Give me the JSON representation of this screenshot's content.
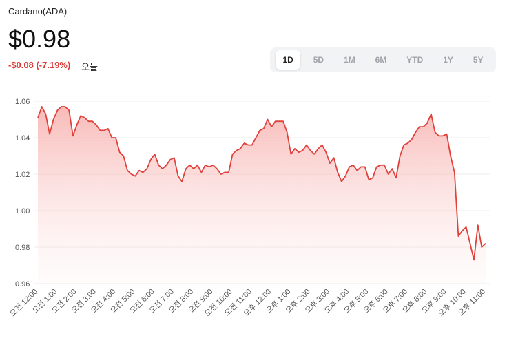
{
  "header": {
    "title": "Cardano(ADA)",
    "price": "$0.98",
    "change": "-$0.08 (-7.19%)",
    "period": "오늘",
    "tabs": [
      "1D",
      "5D",
      "1M",
      "6M",
      "YTD",
      "1Y",
      "5Y"
    ],
    "active_tab": 0
  },
  "chart_data": {
    "type": "line",
    "color": "#e0413b",
    "grid": true,
    "ylim": [
      0.96,
      1.065
    ],
    "yticks": [
      0.96,
      0.98,
      {
        "value": 1,
        "label": "1.00"
      },
      1.02,
      1.04,
      1.06
    ],
    "categories": [
      "오전 12:00",
      null,
      null,
      null,
      null,
      "오전 1:00",
      null,
      null,
      null,
      null,
      "오전 2:00",
      null,
      null,
      null,
      null,
      "오전 3:00",
      null,
      null,
      null,
      null,
      "오전 4:00",
      null,
      null,
      null,
      null,
      "오전 5:00",
      null,
      null,
      null,
      null,
      "오전 6:00",
      null,
      null,
      null,
      null,
      "오전 7:00",
      null,
      null,
      null,
      null,
      "오전 8:00",
      null,
      null,
      null,
      null,
      "오전 9:00",
      null,
      null,
      null,
      null,
      "오전 10:00",
      null,
      null,
      null,
      null,
      "오전 11:00",
      null,
      null,
      null,
      null,
      "오후 12:00",
      null,
      null,
      null,
      null,
      "오후 1:00",
      null,
      null,
      null,
      null,
      "오후 2:00",
      null,
      null,
      null,
      null,
      "오후 3:00",
      null,
      null,
      null,
      null,
      "오후 4:00",
      null,
      null,
      null,
      null,
      "오후 5:00",
      null,
      null,
      null,
      null,
      "오후 6:00",
      null,
      null,
      null,
      null,
      "오후 7:00",
      null,
      null,
      null,
      null,
      "오후 8:00",
      null,
      null,
      null,
      null,
      "오후 9:00",
      null,
      null,
      null,
      null,
      "오후 10:00",
      null,
      null,
      null,
      null,
      "오후 11:00"
    ],
    "values": [
      1.051,
      1.057,
      1.053,
      1.042,
      1.05,
      1.055,
      1.057,
      1.057,
      1.055,
      1.041,
      1.047,
      1.052,
      1.051,
      1.049,
      1.049,
      1.047,
      1.044,
      1.044,
      1.045,
      1.04,
      1.04,
      1.032,
      1.03,
      1.022,
      1.02,
      1.019,
      1.022,
      1.021,
      1.023,
      1.028,
      1.031,
      1.025,
      1.023,
      1.025,
      1.028,
      1.029,
      1.019,
      1.016,
      1.023,
      1.025,
      1.023,
      1.025,
      1.021,
      1.025,
      1.024,
      1.025,
      1.023,
      1.02,
      1.021,
      1.021,
      1.031,
      1.033,
      1.034,
      1.037,
      1.036,
      1.036,
      1.04,
      1.044,
      1.045,
      1.05,
      1.046,
      1.049,
      1.049,
      1.049,
      1.043,
      1.031,
      1.034,
      1.032,
      1.033,
      1.036,
      1.033,
      1.031,
      1.034,
      1.036,
      1.032,
      1.026,
      1.029,
      1.021,
      1.016,
      1.019,
      1.024,
      1.025,
      1.022,
      1.024,
      1.024,
      1.017,
      1.018,
      1.024,
      1.025,
      1.025,
      1.02,
      1.023,
      1.018,
      1.03,
      1.036,
      1.037,
      1.039,
      1.043,
      1.046,
      1.046,
      1.048,
      1.053,
      1.043,
      1.041,
      1.041,
      1.042,
      1.03,
      1.021,
      0.986,
      0.989,
      0.991,
      0.982,
      0.973,
      0.992,
      0.98,
      0.982
    ]
  }
}
